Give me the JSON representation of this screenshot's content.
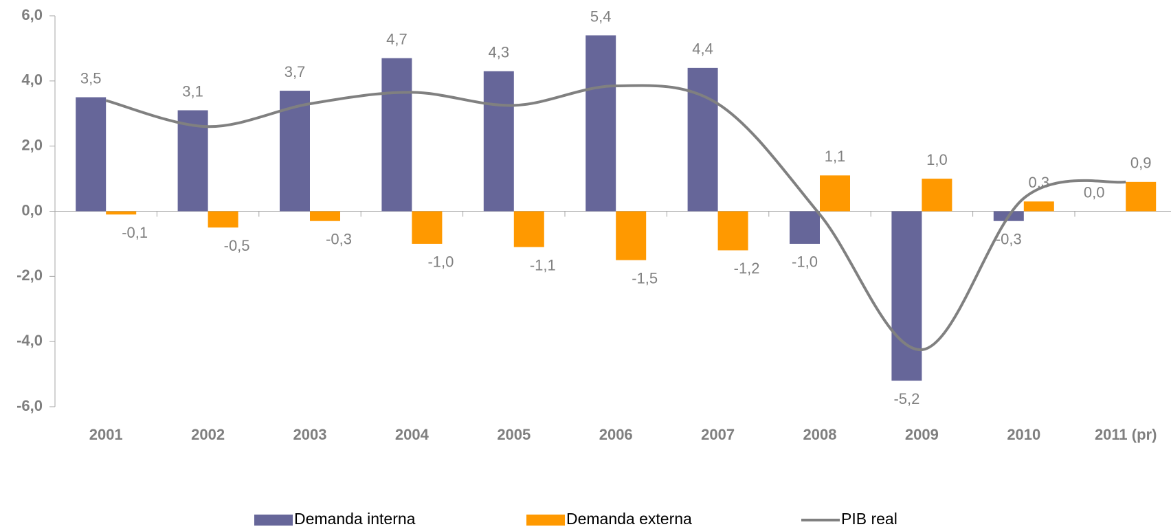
{
  "chart_data": {
    "type": "bar_line",
    "categories": [
      "2001",
      "2002",
      "2003",
      "2004",
      "2005",
      "2006",
      "2007",
      "2008",
      "2009",
      "2010",
      "2011 (pr)"
    ],
    "series": [
      {
        "name": "Demanda interna",
        "type": "bar",
        "color": "#666699",
        "values": [
          3.5,
          3.1,
          3.7,
          4.7,
          4.3,
          5.4,
          4.4,
          -1.0,
          -5.2,
          -0.3,
          0.0
        ],
        "value_labels": [
          "3,5",
          "3,1",
          "3,7",
          "4,7",
          "4,3",
          "5,4",
          "4,4",
          "-1,0",
          "-5,2",
          "-0,3",
          "0,0"
        ]
      },
      {
        "name": "Demanda externa",
        "type": "bar",
        "color": "#ff9900",
        "values": [
          -0.1,
          -0.5,
          -0.3,
          -1.0,
          -1.1,
          -1.5,
          -1.2,
          1.1,
          1.0,
          0.3,
          0.9
        ],
        "value_labels": [
          "-0,1",
          "-0,5",
          "-0,3",
          "-1,0",
          "-1,1",
          "-1,5",
          "-1,2",
          "1,1",
          "1,0",
          "0,3",
          "0,9"
        ]
      },
      {
        "name": "PIB real",
        "type": "line",
        "color": "#808080",
        "values": [
          3.4,
          2.6,
          3.3,
          3.65,
          3.25,
          3.85,
          3.3,
          -0.1,
          -4.25,
          0.4,
          0.9
        ]
      }
    ],
    "ylim": [
      -6,
      6
    ],
    "yticks": [
      {
        "value": -6,
        "label": "-6,0"
      },
      {
        "value": -4,
        "label": "-4,0"
      },
      {
        "value": -2,
        "label": "-2,0"
      },
      {
        "value": 0,
        "label": "0,0"
      },
      {
        "value": 2,
        "label": "2,0"
      },
      {
        "value": 4,
        "label": "4,0"
      },
      {
        "value": 6,
        "label": "6,0"
      }
    ]
  }
}
